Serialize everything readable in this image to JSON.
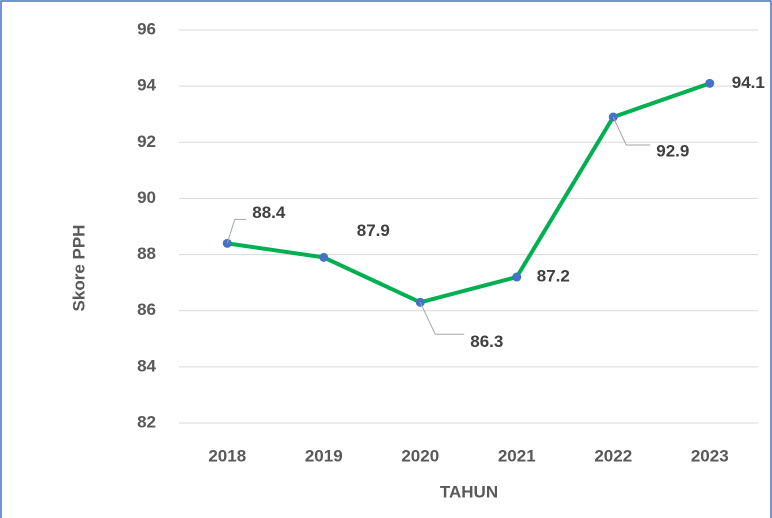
{
  "chart_data": {
    "type": "line",
    "x_label": "TAHUN",
    "y_label": "Skore PPH",
    "categories": [
      "2018",
      "2019",
      "2020",
      "2021",
      "2022",
      "2023"
    ],
    "series": [
      {
        "name": "Skore PPH",
        "color": "#00b050",
        "values": [
          88.4,
          87.9,
          86.3,
          87.2,
          92.9,
          94.1
        ]
      }
    ],
    "ylim": [
      82,
      96
    ],
    "yticks": [
      82,
      84,
      86,
      88,
      90,
      92,
      94,
      96
    ],
    "grid": true,
    "data_labels": true
  }
}
